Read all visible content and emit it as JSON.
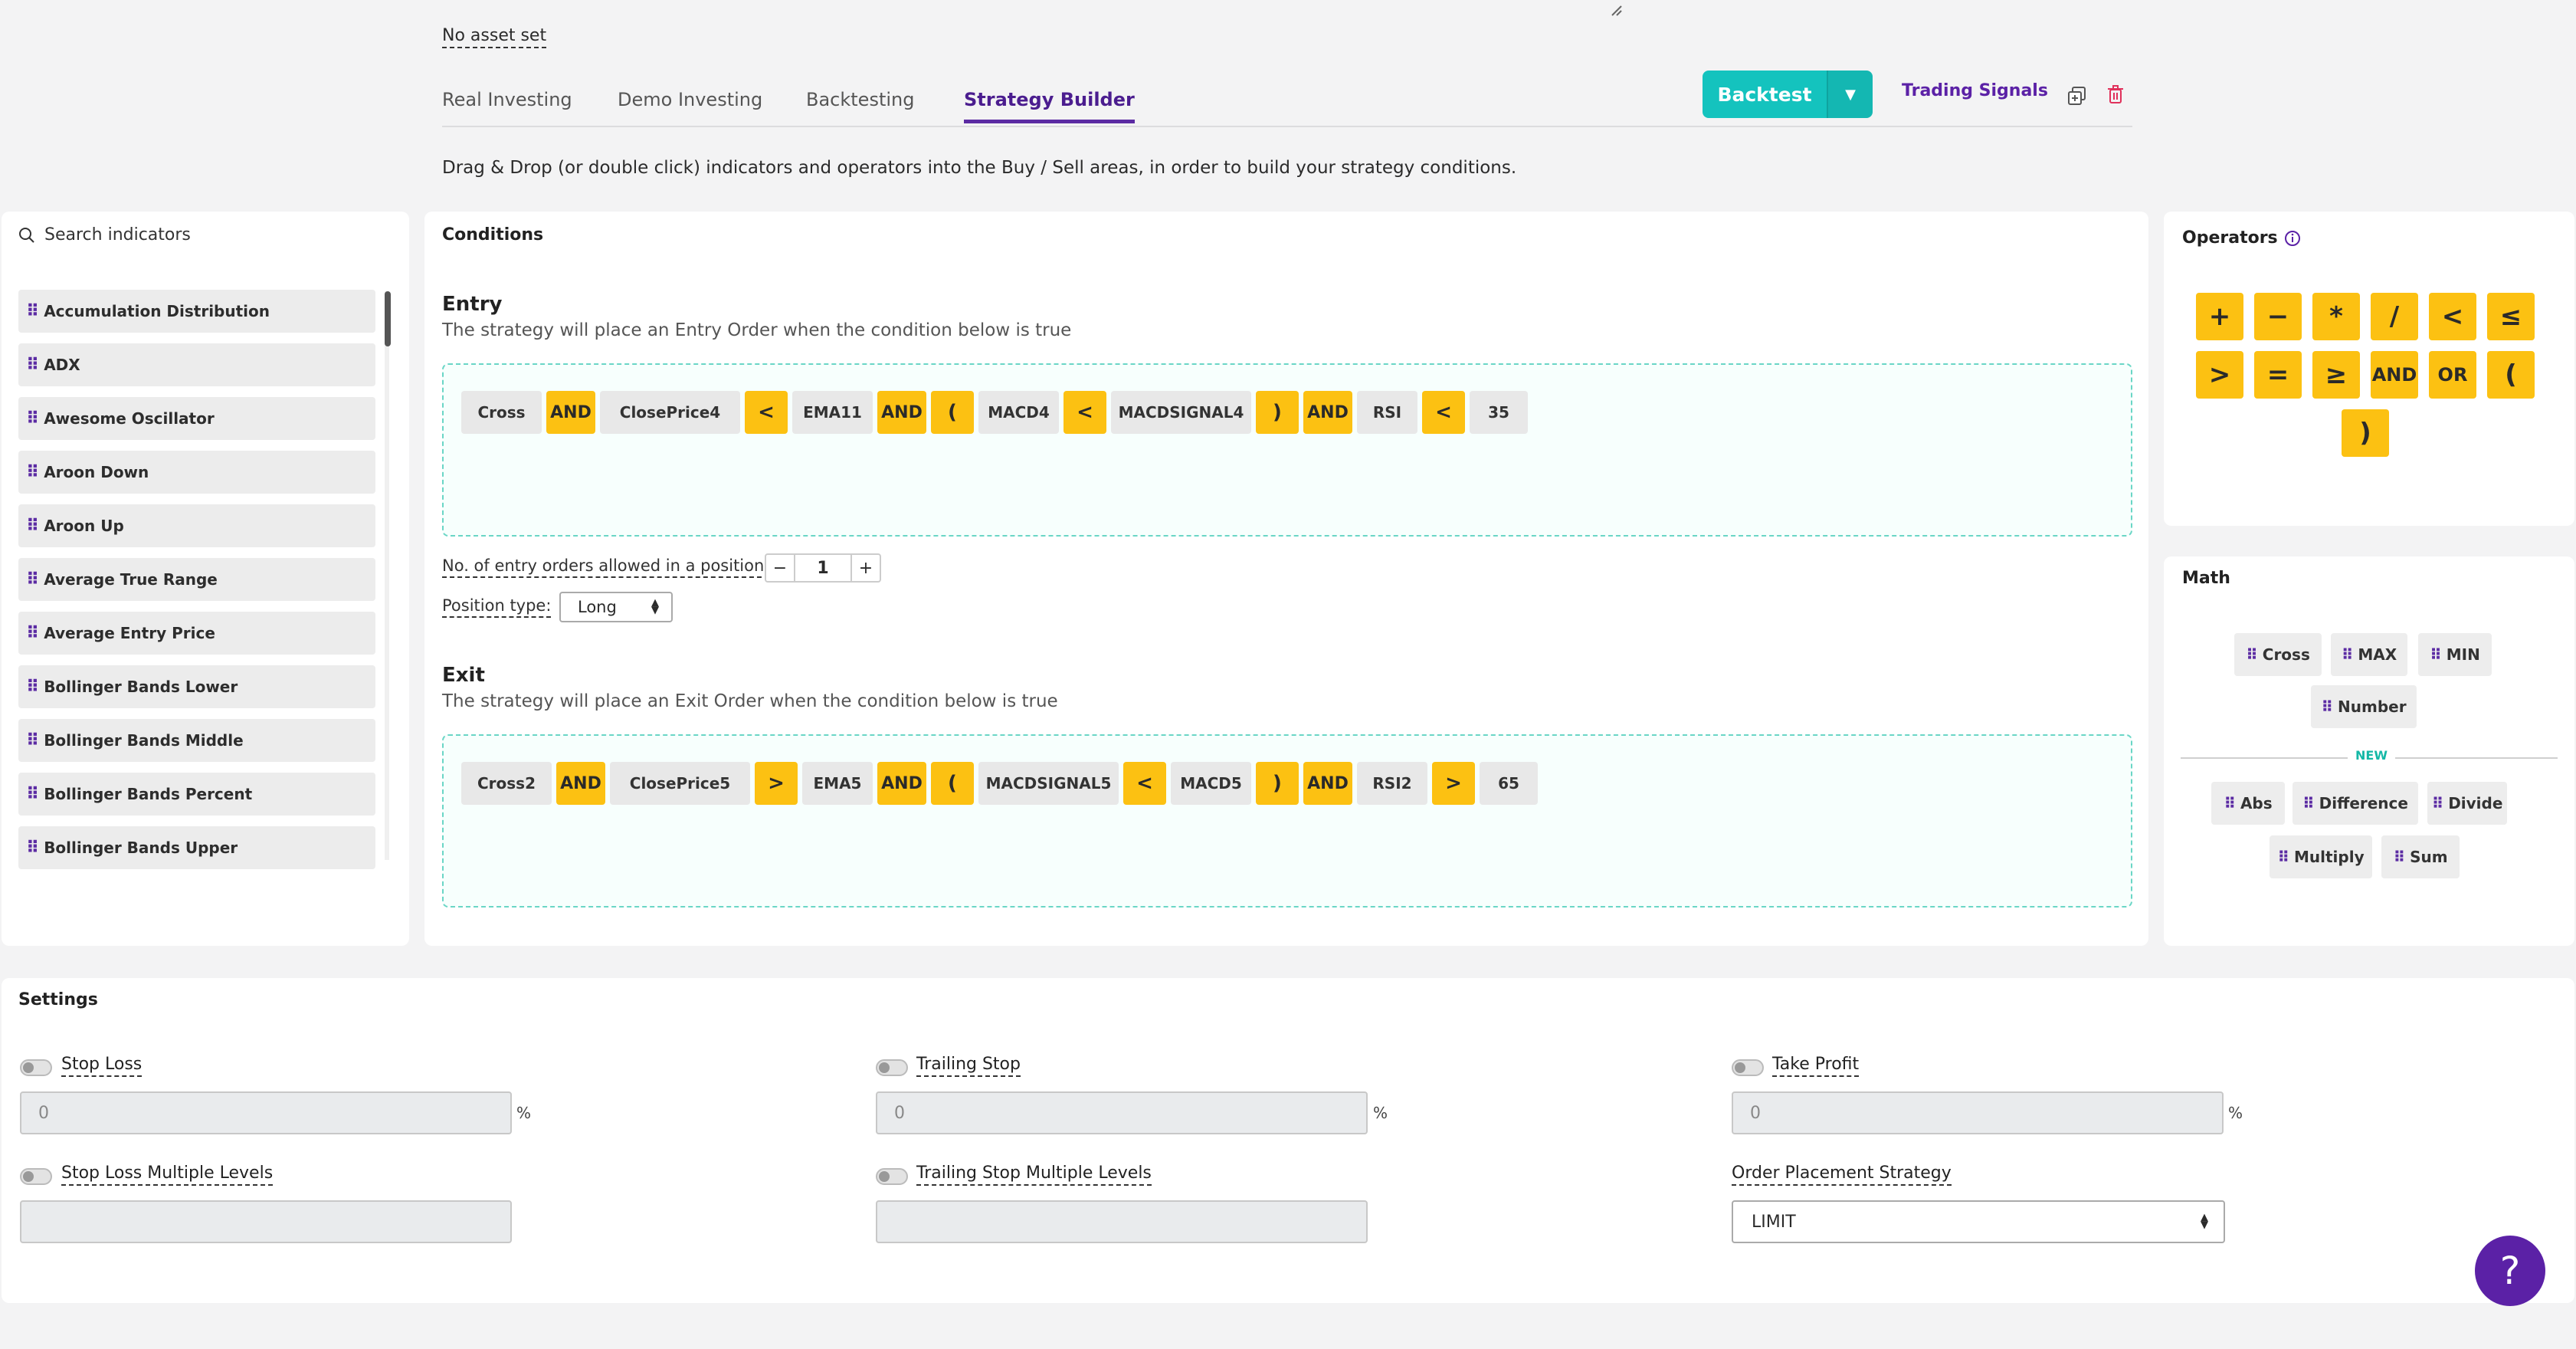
{
  "header": {
    "asset_label": "No asset set",
    "tabs": [
      {
        "label": "Real Investing"
      },
      {
        "label": "Demo Investing"
      },
      {
        "label": "Backtesting"
      },
      {
        "label": "Strategy Builder"
      }
    ],
    "active_tab": "Strategy Builder",
    "backtest_label": "Backtest",
    "signals_label": "Trading Signals",
    "instructions": "Drag & Drop (or double click) indicators and operators into the Buy / Sell areas, in order to build your strategy conditions."
  },
  "indicators": {
    "search_placeholder": "Search indicators",
    "items": [
      "Accumulation Distribution",
      "ADX",
      "Awesome Oscillator",
      "Aroon Down",
      "Aroon Up",
      "Average True Range",
      "Average Entry Price",
      "Bollinger Bands Lower",
      "Bollinger Bands Middle",
      "Bollinger Bands Percent",
      "Bollinger Bands Upper"
    ]
  },
  "conditions": {
    "title": "Conditions",
    "entry": {
      "heading": "Entry",
      "description": "The strategy will place an Entry Order when the condition below is true",
      "tokens": [
        "Cross",
        "AND",
        "ClosePrice4",
        "<",
        "EMA11",
        "AND",
        "(",
        "MACD4",
        "<",
        "MACDSIGNAL4",
        ")",
        "AND",
        "RSI",
        "<",
        "35"
      ]
    },
    "entry_count_label": "No. of entry orders allowed in a position:",
    "entry_count_value": "1",
    "position_type_label": "Position type:",
    "position_type_value": "Long",
    "exit": {
      "heading": "Exit",
      "description": "The strategy will place an Exit Order when the condition below is true",
      "tokens": [
        "Cross2",
        "AND",
        "ClosePrice5",
        ">",
        "EMA5",
        "AND",
        "(",
        "MACDSIGNAL5",
        "<",
        "MACD5",
        ")",
        "AND",
        "RSI2",
        ">",
        "65"
      ]
    }
  },
  "operators": {
    "title": "Operators",
    "items": [
      "+",
      "−",
      "*",
      "/",
      "<",
      "≤",
      ">",
      "=",
      "≥",
      "AND",
      "OR",
      "(",
      ")"
    ]
  },
  "math": {
    "title": "Math",
    "items": [
      "Cross",
      "MAX",
      "MIN",
      "Number"
    ],
    "new_label": "NEW",
    "new_items": [
      "Abs",
      "Difference",
      "Divide",
      "Multiply",
      "Sum"
    ]
  },
  "settings": {
    "title": "Settings",
    "stop_loss_label": "Stop Loss",
    "stop_loss_value": "0",
    "trailing_stop_label": "Trailing Stop",
    "trailing_stop_value": "0",
    "take_profit_label": "Take Profit",
    "take_profit_value": "0",
    "percent_sign": "%",
    "stop_loss_multi_label": "Stop Loss Multiple Levels",
    "trailing_stop_multi_label": "Trailing Stop Multiple Levels",
    "order_strategy_label": "Order Placement Strategy",
    "order_strategy_value": "LIMIT"
  },
  "help_label": "?"
}
